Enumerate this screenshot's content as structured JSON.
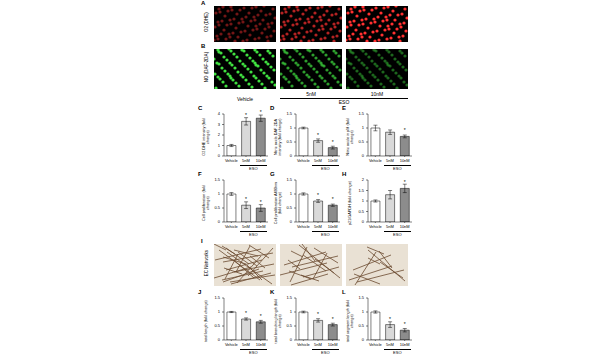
{
  "figure": {
    "groups": [
      "Vehicle",
      "5nM",
      "10nM"
    ],
    "treatment": "ESO",
    "image_rows": [
      {
        "letter": "A",
        "label": "O2 (DHE)",
        "kind": "red"
      },
      {
        "letter": "B",
        "label": "NO (DAF-2DA)",
        "kind": "green"
      },
      {
        "letter": "I",
        "label": "EC Networks",
        "kind": "network"
      }
    ]
  },
  "chart_data": [
    {
      "type": "bar",
      "letter": "C",
      "y_label": "O2 DHE intensity (fold change)",
      "group_label": "ESO",
      "categories": [
        "Vehicle",
        "5nM",
        "10nM"
      ],
      "values": [
        1.0,
        3.3,
        3.6
      ],
      "errors": [
        0.1,
        0.35,
        0.3
      ],
      "colors": [
        "#ffffff",
        "#d9d9d9",
        "#8c8c8c"
      ],
      "ylim": [
        0,
        4
      ],
      "yticks": [
        0,
        1,
        2,
        3,
        4
      ],
      "annotations": [
        {
          "category": "5nM",
          "text": "*"
        },
        {
          "category": "10nM",
          "text": "*"
        }
      ]
    },
    {
      "type": "bar",
      "letter": "D",
      "y_label": "Nitric oxide DAF-2DA intensity (fold change)",
      "group_label": "ESO",
      "categories": [
        "Vehicle",
        "5nM",
        "10nM"
      ],
      "values": [
        1.0,
        0.55,
        0.3
      ],
      "errors": [
        0.03,
        0.06,
        0.05
      ],
      "colors": [
        "#ffffff",
        "#d9d9d9",
        "#8c8c8c"
      ],
      "ylim": [
        0,
        1.5
      ],
      "yticks": [
        0,
        0.5,
        1,
        1.5
      ],
      "annotations": [
        {
          "category": "5nM",
          "text": "*"
        },
        {
          "category": "10nM",
          "text": "*"
        }
      ]
    },
    {
      "type": "bar",
      "letter": "E",
      "y_label": "Nitric oxide in pM (fold change)",
      "group_label": "ESO",
      "categories": [
        "Vehicle",
        "5nM",
        "10nM"
      ],
      "values": [
        1.0,
        0.85,
        0.7
      ],
      "errors": [
        0.1,
        0.08,
        0.05
      ],
      "colors": [
        "#ffffff",
        "#d9d9d9",
        "#8c8c8c"
      ],
      "ylim": [
        0,
        1.5
      ],
      "yticks": [
        0,
        0.5,
        1,
        1.5
      ],
      "annotations": [
        {
          "category": "10nM",
          "text": "*"
        }
      ]
    },
    {
      "type": "bar",
      "letter": "F",
      "y_label": "Cell proliferation (fold change)",
      "group_label": "ESO",
      "categories": [
        "Vehicle",
        "5nM",
        "10nM"
      ],
      "values": [
        1.0,
        0.6,
        0.5
      ],
      "errors": [
        0.05,
        0.12,
        0.12
      ],
      "colors": [
        "#ffffff",
        "#d9d9d9",
        "#8c8c8c"
      ],
      "ylim": [
        0,
        1.5
      ],
      "yticks": [
        0,
        0.5,
        1,
        1.5
      ],
      "annotations": [
        {
          "category": "5nM",
          "text": "*"
        },
        {
          "category": "10nM",
          "text": "*"
        }
      ]
    },
    {
      "type": "bar",
      "letter": "G",
      "y_label": "Cell proliferation A490nm (fold change)",
      "group_label": "ESO",
      "categories": [
        "Vehicle",
        "5nM",
        "10nM"
      ],
      "values": [
        1.0,
        0.75,
        0.6
      ],
      "errors": [
        0.04,
        0.05,
        0.04
      ],
      "colors": [
        "#ffffff",
        "#d9d9d9",
        "#8c8c8c"
      ],
      "ylim": [
        0,
        1.5
      ],
      "yticks": [
        0,
        0.5,
        1,
        1.5
      ],
      "annotations": [
        {
          "category": "5nM",
          "text": "*"
        },
        {
          "category": "10nM",
          "text": "*"
        }
      ]
    },
    {
      "type": "bar",
      "letter": "H",
      "y_label": "p21/GAPDH (fold change)",
      "group_label": "ESO",
      "categories": [
        "Vehicle",
        "5nM",
        "10nM"
      ],
      "values": [
        1.0,
        1.3,
        1.6
      ],
      "errors": [
        0.05,
        0.2,
        0.2
      ],
      "colors": [
        "#ffffff",
        "#d9d9d9",
        "#8c8c8c"
      ],
      "ylim": [
        0,
        2
      ],
      "yticks": [
        0,
        0.5,
        1,
        1.5,
        2
      ],
      "annotations": [
        {
          "category": "10nM",
          "text": "*"
        }
      ]
    },
    {
      "type": "bar",
      "letter": "J",
      "y_label": "total length (fold change)",
      "group_label": "ESO",
      "categories": [
        "Vehicle",
        "5nM",
        "10nM"
      ],
      "values": [
        1.0,
        0.75,
        0.65
      ],
      "errors": [
        0.02,
        0.04,
        0.05
      ],
      "colors": [
        "#ffffff",
        "#d9d9d9",
        "#8c8c8c"
      ],
      "ylim": [
        0,
        1.5
      ],
      "yticks": [
        0,
        0.5,
        1,
        1.5
      ],
      "annotations": [
        {
          "category": "5nM",
          "text": "*"
        },
        {
          "category": "10nM",
          "text": "*"
        }
      ]
    },
    {
      "type": "bar",
      "letter": "K",
      "y_label": "total branching length (fold change)",
      "group_label": "ESO",
      "categories": [
        "Vehicle",
        "5nM",
        "10nM"
      ],
      "values": [
        1.0,
        0.7,
        0.55
      ],
      "errors": [
        0.03,
        0.06,
        0.05
      ],
      "colors": [
        "#ffffff",
        "#d9d9d9",
        "#8c8c8c"
      ],
      "ylim": [
        0,
        1.5
      ],
      "yticks": [
        0,
        0.5,
        1,
        1.5
      ],
      "annotations": [
        {
          "category": "5nM",
          "text": "*"
        },
        {
          "category": "10nM",
          "text": "*"
        }
      ]
    },
    {
      "type": "bar",
      "letter": "L",
      "y_label": "total segment length (fold change)",
      "group_label": "ESO",
      "categories": [
        "Vehicle",
        "5nM",
        "10nM"
      ],
      "values": [
        1.0,
        0.55,
        0.35
      ],
      "errors": [
        0.04,
        0.1,
        0.06
      ],
      "colors": [
        "#ffffff",
        "#d9d9d9",
        "#8c8c8c"
      ],
      "ylim": [
        0,
        1.5
      ],
      "yticks": [
        0,
        0.5,
        1,
        1.5
      ],
      "annotations": [
        {
          "category": "5nM",
          "text": "*"
        },
        {
          "category": "10nM",
          "text": "*"
        }
      ]
    }
  ]
}
